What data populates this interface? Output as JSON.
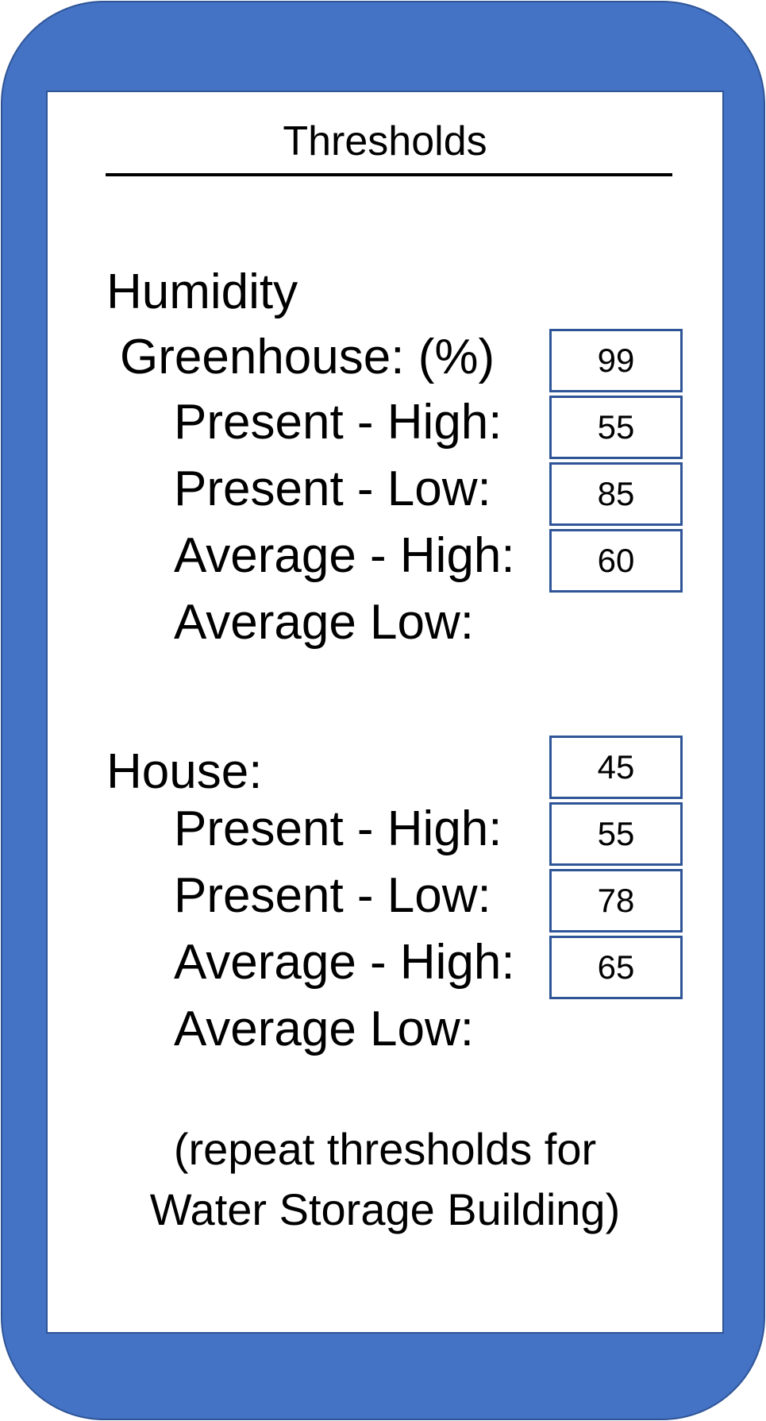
{
  "screen": {
    "title": "Thresholds",
    "section_label": "Humidity",
    "greenhouse": {
      "label": "Greenhouse:  (%)",
      "present_high_label": "Present - High:",
      "present_high_value": "99",
      "present_low_label": "Present - Low:",
      "present_low_value": "55",
      "average_high_label": "Average - High:",
      "average_high_value": "85",
      "average_low_label": "Average Low:",
      "average_low_value": "60"
    },
    "house": {
      "label": "House:",
      "present_high_label": "Present - High:",
      "present_high_value": "45",
      "present_low_label": "Present - Low:",
      "present_low_value": "55",
      "average_high_label": "Average - High:",
      "average_high_value": "78",
      "average_low_label": "Average Low:",
      "average_low_value": "65"
    },
    "note_line1": "(repeat thresholds for",
    "note_line2": "Water Storage Building)"
  },
  "colors": {
    "frame": "#4472c4",
    "frame_border": "#2f5597",
    "field_border": "#2f5597"
  }
}
